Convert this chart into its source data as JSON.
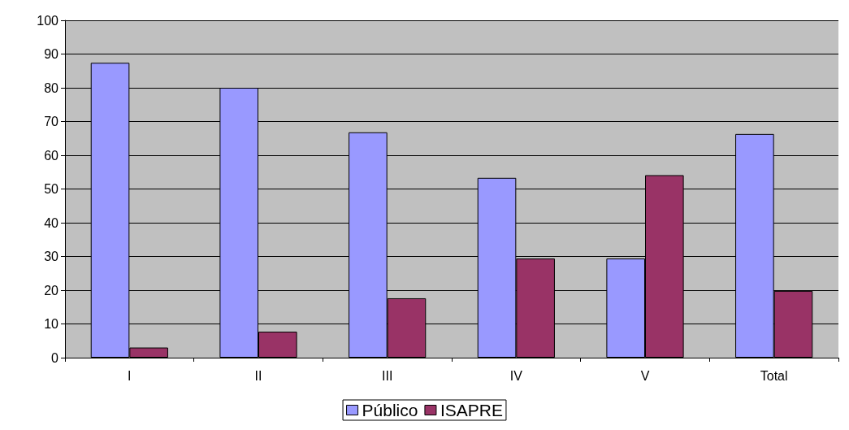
{
  "chart_data": {
    "type": "bar",
    "categories": [
      "I",
      "II",
      "III",
      "IV",
      "V",
      "Total"
    ],
    "series": [
      {
        "name": "Público",
        "color": "#9999ff",
        "values": [
          87.4,
          80.0,
          66.8,
          53.3,
          29.4,
          66.3
        ]
      },
      {
        "name": "ISAPRE",
        "color": "#993366",
        "values": [
          3.0,
          7.7,
          17.6,
          29.4,
          54.1,
          19.8
        ]
      }
    ],
    "ylim": [
      0,
      100
    ],
    "yticks": [
      0,
      10,
      20,
      30,
      40,
      50,
      60,
      70,
      80,
      90,
      100
    ],
    "grid": "y",
    "legend": "bottom"
  }
}
